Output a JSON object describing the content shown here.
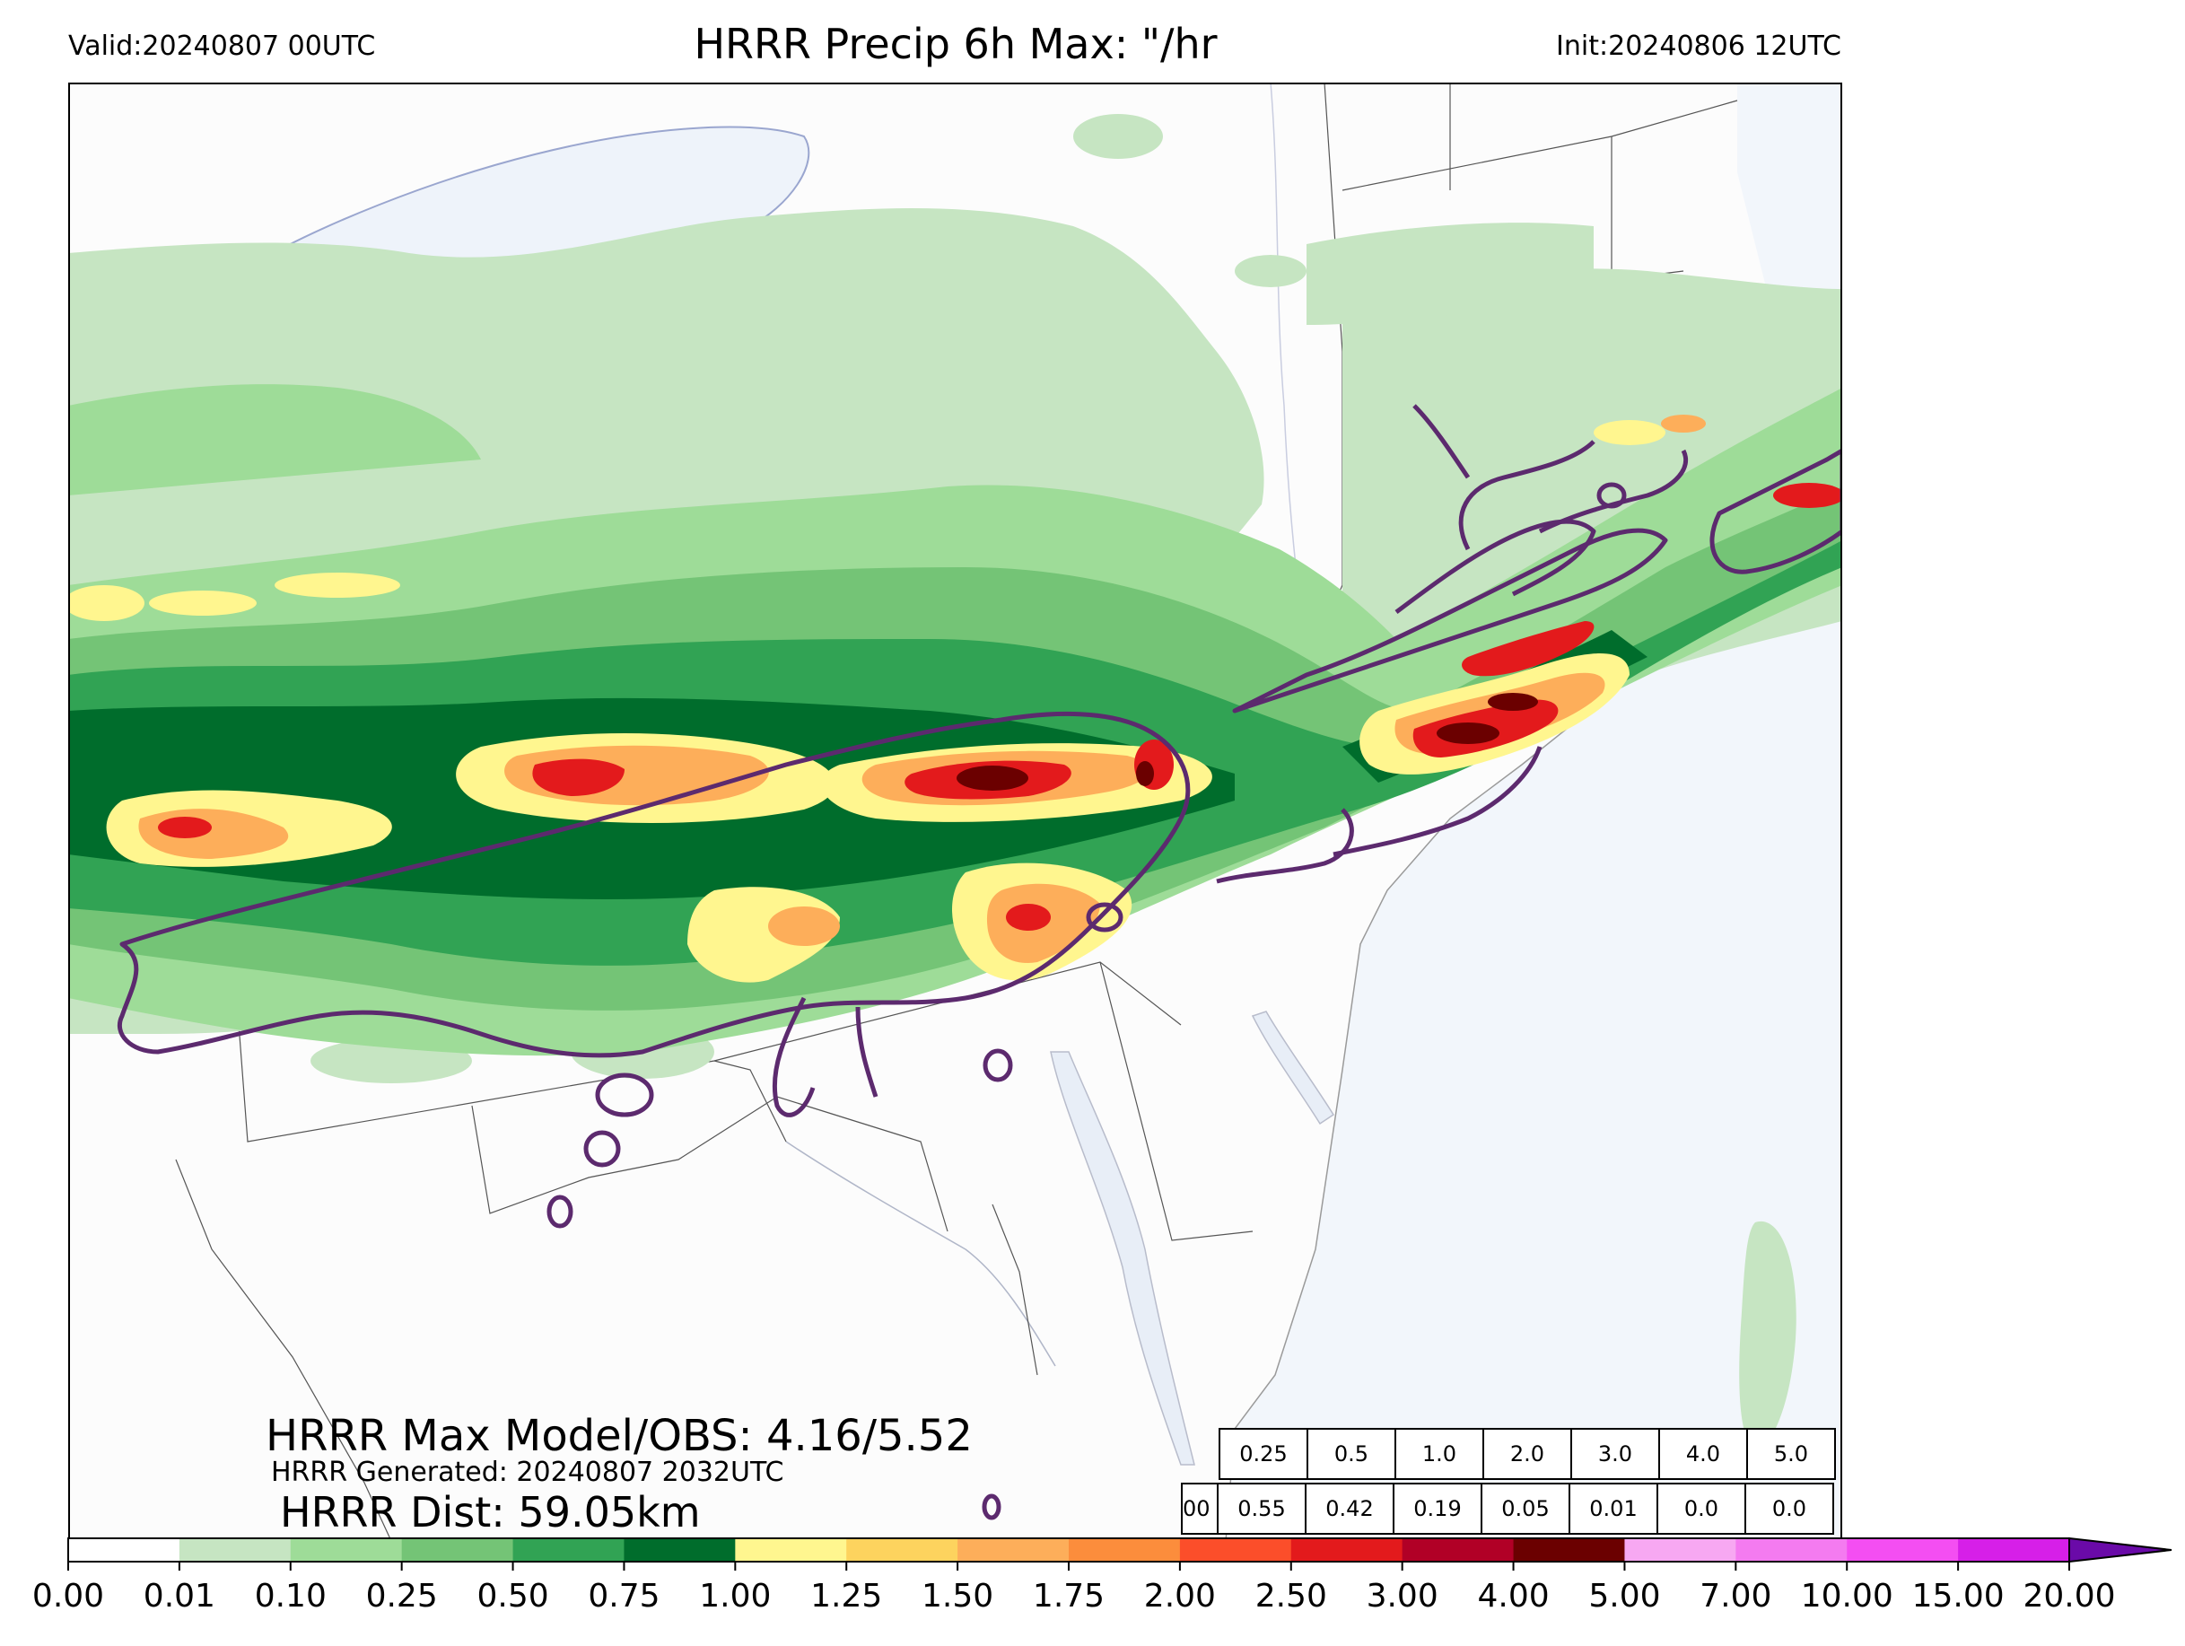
{
  "header": {
    "valid": "Valid:20240807 00UTC",
    "title": "HRRR Precip 6h Max: \"/hr",
    "init": "Init:20240806 12UTC"
  },
  "annotations": {
    "max_line": "HRRR Max Model/OBS: 4.16/5.52",
    "generated_line": "HRRR Generated: 20240807 2032UTC",
    "dist_line": "HRRR Dist: 59.05km"
  },
  "contingency_table": {
    "thresholds": [
      "0.25",
      "0.5",
      "1.0",
      "2.0",
      "3.0",
      "4.0",
      "5.0"
    ],
    "row_label": "00",
    "values": [
      "0.55",
      "0.42",
      "0.19",
      "0.05",
      "0.01",
      "0.0",
      "0.0"
    ]
  },
  "colorbar": {
    "ticks": [
      "0.00",
      "0.01",
      "0.10",
      "0.25",
      "0.50",
      "0.75",
      "1.00",
      "1.25",
      "1.50",
      "1.75",
      "2.00",
      "2.50",
      "3.00",
      "4.00",
      "5.00",
      "7.00",
      "10.00",
      "15.00",
      "20.00"
    ],
    "colors": [
      "#ffffff",
      "#c6e5c2",
      "#9edc98",
      "#74c476",
      "#31a354",
      "#006d2c",
      "#fff68f",
      "#fdd35e",
      "#fdae5a",
      "#fc8d3c",
      "#fc4e2a",
      "#e31a1c",
      "#b10026",
      "#6b0000",
      "#f7a8f2",
      "#f47bf0",
      "#f44ef2",
      "#d61fe8",
      "#9413d4"
    ],
    "extend_color": "#6a0aa8"
  },
  "map": {
    "ocean_color": "#f2f6fb",
    "land_color": "#fcfcfc",
    "obs_contour_color": "#5c2a6e"
  }
}
